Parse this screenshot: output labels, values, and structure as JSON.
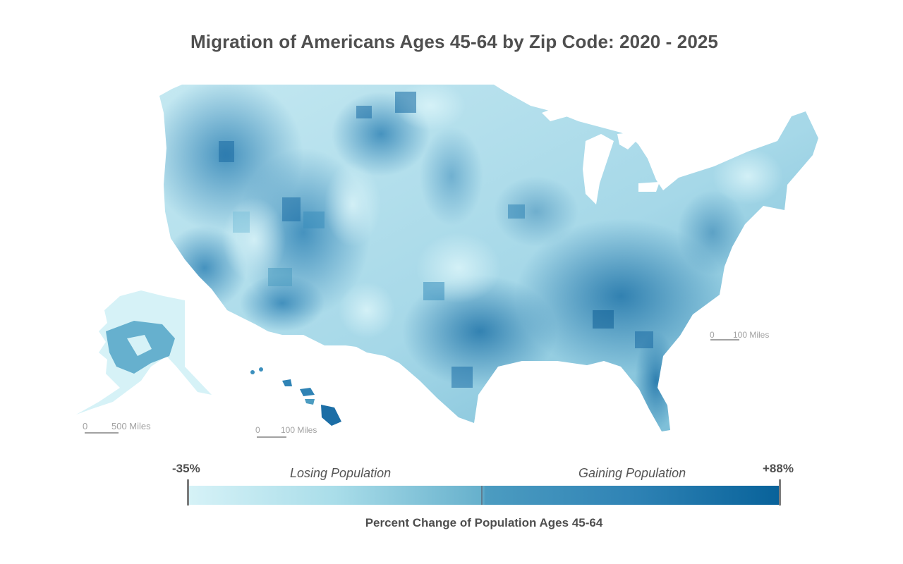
{
  "title": "Migration of Americans Ages 45-64 by Zip Code: 2020 - 2025",
  "scale_bars": {
    "alaska": {
      "zero": "0",
      "label": "500 Miles"
    },
    "hawaii": {
      "zero": "0",
      "label": "100 Miles"
    },
    "mainland": {
      "zero": "0",
      "label": "100 Miles"
    }
  },
  "legend": {
    "min_label": "-35%",
    "max_label": "+88%",
    "losing_label": "Losing Population",
    "gaining_label": "Gaining Population",
    "caption": "Percent Change of Population Ages 45-64",
    "min_value": -35,
    "max_value": 88,
    "colors": [
      "#d6f2f7",
      "#a9dde9",
      "#66b0cc",
      "#2f83b5",
      "#08629a"
    ]
  },
  "map": {
    "regions": [
      "Contiguous United States",
      "Alaska",
      "Hawaii"
    ],
    "fill_scale": "percent change by zip code"
  }
}
